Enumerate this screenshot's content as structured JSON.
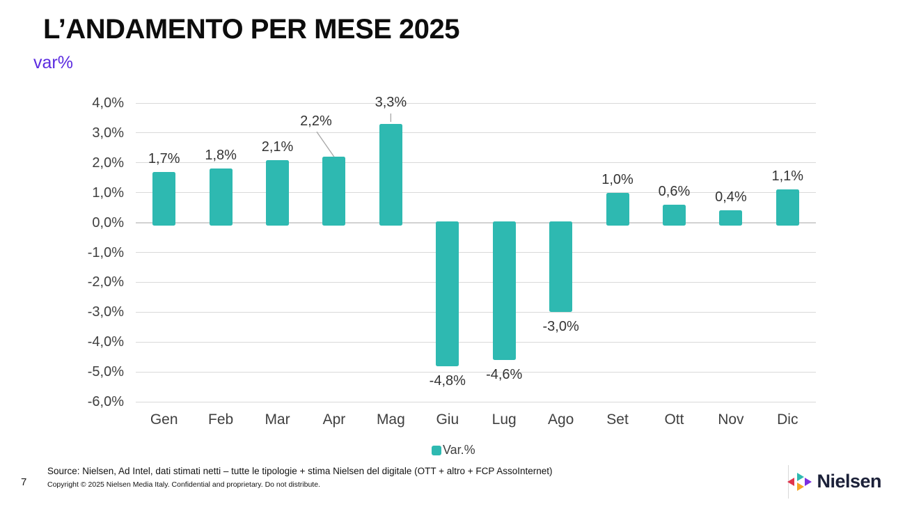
{
  "slide": {
    "title": "L’ANDAMENTO PER MESE 2025",
    "subtitle": "var%",
    "page_number": "7",
    "source_note": "Source: Nielsen, Ad Intel, dati stimati netti – tutte le tipologie + stima Nielsen del digitale (OTT  + altro +  FCP AssoInternet)",
    "copyright_note": "Copyright © 2025 Nielsen Media Italy. Confidential and proprietary. Do not distribute.",
    "logo_text": "Nielsen"
  },
  "colors": {
    "bar_teal": "#2eb9b1",
    "subtitle_purple": "#5b2be0",
    "gridline_gray": "#d9d9d9",
    "axis_text_gray": "#3f3f3f",
    "leader_line_gray": "#a6a6a6",
    "logo_navy": "#1c2139",
    "logo_red": "#e0344c",
    "logo_orange": "#f5a623",
    "logo_purple": "#7b2ee0"
  },
  "chart_data": {
    "type": "bar",
    "title": "L’ANDAMENTO PER MESE 2025",
    "subtitle": "var%",
    "categories": [
      "Gen",
      "Feb",
      "Mar",
      "Apr",
      "Mag",
      "Giu",
      "Lug",
      "Ago",
      "Set",
      "Ott",
      "Nov",
      "Dic"
    ],
    "values": [
      1.7,
      1.8,
      2.1,
      2.2,
      3.3,
      -4.8,
      -4.6,
      -3.0,
      1.0,
      0.6,
      0.4,
      1.1
    ],
    "data_labels": [
      "1,7%",
      "1,8%",
      "2,1%",
      "2,2%",
      "3,3%",
      "-4,8%",
      "-4,6%",
      "-3,0%",
      "1,0%",
      "0,6%",
      "0,4%",
      "1,1%"
    ],
    "xlabel": "",
    "ylabel": "",
    "ylim": [
      -6.0,
      4.0
    ],
    "ytick_step": 1.0,
    "ytick_labels": [
      "4,0%",
      "3,0%",
      "2,0%",
      "1,0%",
      "0,0%",
      "-1,0%",
      "-2,0%",
      "-3,0%",
      "-4,0%",
      "-5,0%",
      "-6,0%"
    ],
    "grid": true,
    "bar_color": "#2eb9b1",
    "legend": [
      {
        "label": "Var.%",
        "color": "#2eb9b1"
      }
    ],
    "legend_position": "bottom",
    "label_callouts": [
      {
        "category": "Apr",
        "index": 3,
        "type": "diagonal"
      },
      {
        "category": "Mag",
        "index": 4,
        "type": "vertical"
      }
    ]
  }
}
